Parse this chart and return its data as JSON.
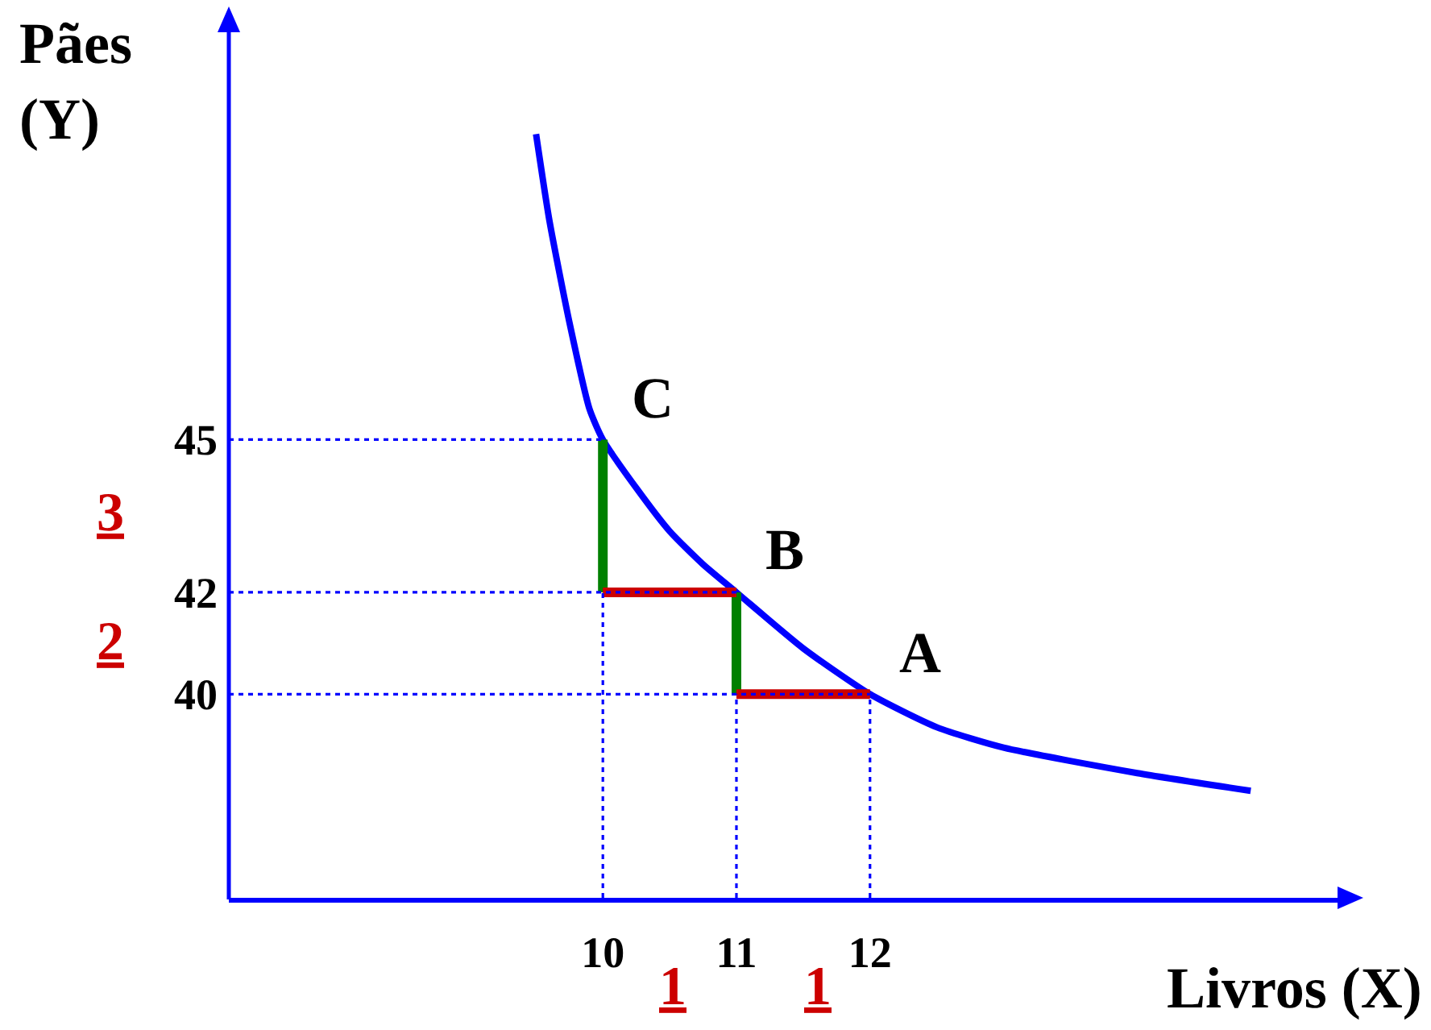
{
  "chart_data": {
    "type": "line",
    "xlabel": "Livros (X)",
    "ylabel": "Pães (Y)",
    "xlim": [
      7.2,
      15.5
    ],
    "ylim": [
      36,
      53
    ],
    "xticks": [
      10,
      11,
      12
    ],
    "yticks": [
      40,
      42,
      45
    ],
    "grid": false,
    "series": [
      {
        "color": "#0000ff",
        "line_style": "solid",
        "x": [
          9.5,
          9.6,
          9.75,
          9.9,
          10,
          10.25,
          10.5,
          10.75,
          11,
          11.5,
          12,
          12.5,
          13,
          14,
          14.85
        ],
        "values": [
          51,
          49.3,
          47.3,
          45.6,
          45,
          44.05,
          43.2,
          42.55,
          42,
          40.9,
          40,
          39.35,
          38.95,
          38.45,
          38.1
        ]
      },
      {
        "color": "#008000",
        "line_style": "solid",
        "x": [
          10,
          10
        ],
        "values": [
          42,
          45
        ]
      },
      {
        "color": "#008000",
        "line_style": "solid",
        "x": [
          11,
          11
        ],
        "values": [
          40,
          42
        ]
      },
      {
        "color": "#cc0000",
        "line_style": "solid",
        "x": [
          10,
          11
        ],
        "values": [
          42,
          42
        ]
      },
      {
        "color": "#cc0000",
        "line_style": "solid",
        "x": [
          11,
          12
        ],
        "values": [
          40,
          40
        ]
      },
      {
        "color": "#0000ff",
        "line_style": "dotted",
        "x": [
          7.2,
          10
        ],
        "values": [
          45,
          45
        ]
      },
      {
        "color": "#0000ff",
        "line_style": "dotted",
        "x": [
          7.2,
          11
        ],
        "values": [
          42,
          42
        ]
      },
      {
        "color": "#0000ff",
        "line_style": "dotted",
        "x": [
          7.2,
          12
        ],
        "values": [
          40,
          40
        ]
      },
      {
        "color": "#0000ff",
        "line_style": "dotted",
        "x": [
          10,
          10
        ],
        "values": [
          36,
          42
        ]
      },
      {
        "color": "#0000ff",
        "line_style": "dotted",
        "x": [
          11,
          11
        ],
        "values": [
          36,
          40
        ]
      },
      {
        "color": "#0000ff",
        "line_style": "dotted",
        "x": [
          12,
          12
        ],
        "values": [
          36,
          40
        ]
      }
    ],
    "annotations": [
      {
        "text": "C",
        "x": 10,
        "y": 45
      },
      {
        "text": "B",
        "x": 11,
        "y": 42
      },
      {
        "text": "A",
        "x": 12,
        "y": 40
      },
      "3",
      "2",
      "1",
      "1"
    ]
  }
}
